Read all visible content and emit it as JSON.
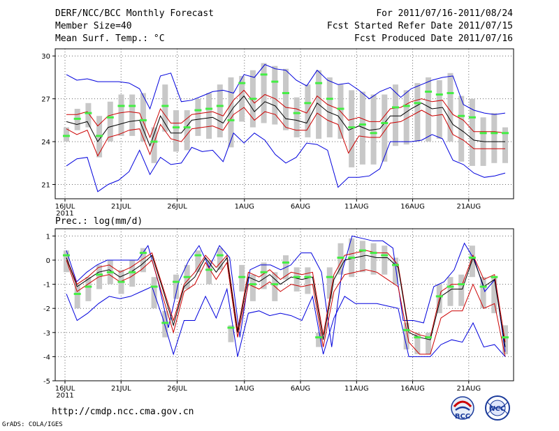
{
  "header": {
    "title": "DERF/NCC/BCC Monthly Forecast",
    "member_size": "Member Size=40",
    "variable": "Mean Surf. Temp.: °C",
    "period": "For 2011/07/16-2011/08/24",
    "started": "Fcst Started Refer Date 2011/07/15",
    "produced": "Fcst Produced Date 2011/07/16"
  },
  "footer": {
    "url": "http://cmdp.ncc.cma.gov.cn",
    "credit": "GrADS: COLA/IGES",
    "logo_bcc": "BCC",
    "logo_ncc": "NCC"
  },
  "colors": {
    "mean": "#000000",
    "inner": "#cc0000",
    "outer": "#0000dd",
    "box": "#c8c8c8",
    "marker": "#44ee44"
  },
  "chart_data": [
    {
      "type": "line",
      "title": "Mean Surf. Temp.: °C",
      "ylim": [
        20,
        30.5
      ],
      "yticks": [
        21,
        24,
        27,
        30
      ],
      "xticks": [
        {
          "day": 0,
          "label": "16JUL",
          "sub": "2011"
        },
        {
          "day": 5,
          "label": "21JUL"
        },
        {
          "day": 10,
          "label": "26JUL"
        },
        {
          "day": 16,
          "label": "1AUG"
        },
        {
          "day": 21,
          "label": "6AUG"
        },
        {
          "day": 26,
          "label": "11AUG"
        },
        {
          "day": 31,
          "label": "16AUG"
        },
        {
          "day": 36,
          "label": "21AUG"
        }
      ],
      "days": 40,
      "series": [
        {
          "name": "outer_high",
          "values": [
            28.7,
            28.3,
            28.4,
            28.2,
            28.2,
            28.2,
            28.1,
            27.7,
            26.3,
            28.6,
            28.8,
            26.8,
            26.9,
            27.2,
            27.5,
            27.6,
            27.4,
            28.7,
            28.5,
            29.4,
            29.1,
            29.0,
            28.3,
            27.9,
            29.0,
            28.3,
            28.0,
            28.1,
            27.6,
            27.0,
            27.5,
            27.8,
            27.1,
            27.7,
            28.0,
            28.3,
            28.5,
            28.6,
            26.6,
            26.2,
            26.0,
            25.9,
            26.0
          ]
        },
        {
          "name": "inner_high",
          "values": [
            25.9,
            25.9,
            26.1,
            25.1,
            25.8,
            26.0,
            26.1,
            26.0,
            24.3,
            26.3,
            25.3,
            25.3,
            25.9,
            26.0,
            26.1,
            25.8,
            26.9,
            27.6,
            26.7,
            27.3,
            27.0,
            26.4,
            26.3,
            26.0,
            27.2,
            26.6,
            26.3,
            25.5,
            25.7,
            25.4,
            25.4,
            26.3,
            26.4,
            26.8,
            27.0,
            26.8,
            26.9,
            25.9,
            25.5,
            24.7,
            24.7,
            24.7,
            24.6
          ]
        },
        {
          "name": "mean",
          "values": [
            25.4,
            25.2,
            25.4,
            24.0,
            25.0,
            25.2,
            25.4,
            25.5,
            23.7,
            25.8,
            24.6,
            24.6,
            25.5,
            25.6,
            25.7,
            25.3,
            26.4,
            27.2,
            26.1,
            26.8,
            26.5,
            25.6,
            25.5,
            25.3,
            26.7,
            26.1,
            25.8,
            24.8,
            25.1,
            24.8,
            24.9,
            25.8,
            25.8,
            26.3,
            26.7,
            26.3,
            26.4,
            25.2,
            24.7,
            24.1,
            24.0,
            24.0,
            24.0
          ]
        },
        {
          "name": "inner_low",
          "values": [
            24.9,
            24.5,
            24.8,
            23.0,
            24.3,
            24.5,
            24.8,
            24.9,
            23.1,
            25.2,
            24.2,
            24.0,
            24.9,
            25.0,
            25.1,
            24.8,
            25.9,
            26.4,
            25.5,
            26.1,
            25.9,
            25.0,
            24.8,
            24.8,
            26.0,
            25.5,
            25.2,
            23.2,
            24.4,
            24.3,
            24.3,
            25.3,
            25.4,
            25.8,
            26.2,
            25.8,
            25.9,
            24.5,
            24.1,
            23.5,
            23.5,
            23.5,
            23.5
          ]
        },
        {
          "name": "outer_low",
          "values": [
            22.3,
            22.8,
            22.9,
            20.5,
            21.0,
            21.3,
            21.9,
            23.4,
            21.7,
            22.9,
            22.4,
            22.5,
            23.6,
            23.3,
            23.4,
            22.6,
            24.6,
            23.9,
            24.6,
            24.1,
            23.1,
            22.5,
            22.9,
            23.9,
            23.8,
            23.4,
            20.8,
            21.5,
            21.5,
            21.6,
            22.1,
            24.0,
            24.0,
            24.0,
            24.1,
            24.5,
            24.2,
            22.7,
            22.4,
            21.8,
            21.5,
            21.6,
            21.8
          ]
        }
      ],
      "markers": [
        24.4,
        25.6,
        26.0,
        24.4,
        25.7,
        26.5,
        26.5,
        25.5,
        24.0,
        26.5,
        25.0,
        25.0,
        26.2,
        26.3,
        26.5,
        25.5,
        28.1,
        27.0,
        28.7,
        28.2,
        27.4,
        26.0,
        26.7,
        28.1,
        27.0,
        26.3,
        25.0,
        25.2,
        24.6,
        25.3,
        26.4,
        26.5,
        26.7,
        27.5,
        27.3,
        27.4,
        25.8,
        25.7,
        24.6,
        24.6,
        24.6
      ],
      "boxes": [
        [
          24.0,
          25.0
        ],
        [
          24.8,
          26.3
        ],
        [
          25.0,
          26.7
        ],
        [
          22.9,
          25.8
        ],
        [
          24.0,
          26.8
        ],
        [
          24.4,
          27.3
        ],
        [
          24.4,
          27.3
        ],
        [
          24.0,
          27.4
        ],
        [
          22.5,
          25.0
        ],
        [
          24.7,
          28.0
        ],
        [
          23.3,
          26.2
        ],
        [
          23.4,
          26.2
        ],
        [
          24.4,
          27.0
        ],
        [
          24.2,
          27.4
        ],
        [
          24.3,
          28.0
        ],
        [
          23.6,
          28.5
        ],
        [
          25.4,
          28.6
        ],
        [
          25.0,
          29.0
        ],
        [
          25.3,
          29.5
        ],
        [
          25.2,
          29.3
        ],
        [
          24.8,
          29.1
        ],
        [
          24.3,
          27.1
        ],
        [
          24.3,
          28.0
        ],
        [
          24.2,
          29.0
        ],
        [
          24.3,
          28.5
        ],
        [
          24.2,
          28.0
        ],
        [
          22.2,
          27.6
        ],
        [
          22.4,
          27.5
        ],
        [
          22.4,
          27.3
        ],
        [
          22.6,
          27.3
        ],
        [
          23.7,
          28.0
        ],
        [
          23.8,
          27.6
        ],
        [
          24.0,
          28.1
        ],
        [
          24.0,
          28.5
        ],
        [
          24.2,
          28.3
        ],
        [
          24.0,
          28.8
        ],
        [
          22.6,
          27.2
        ],
        [
          22.3,
          27.0
        ],
        [
          22.3,
          25.7
        ],
        [
          22.5,
          26.0
        ],
        [
          22.5,
          25.0
        ]
      ]
    },
    {
      "type": "line",
      "title": "Prec.: log(mm/d)",
      "ylim": [
        -5,
        1.3
      ],
      "yticks": [
        -5,
        -4,
        -3,
        -2,
        -1,
        0,
        1
      ],
      "xticks": [
        {
          "day": 0,
          "label": "16JUL",
          "sub": "2011"
        },
        {
          "day": 5,
          "label": "21JUL"
        },
        {
          "day": 10,
          "label": "26JUL"
        },
        {
          "day": 16,
          "label": "1AUG"
        },
        {
          "day": 21,
          "label": "6AUG"
        },
        {
          "day": 26,
          "label": "11AUG"
        },
        {
          "day": 31,
          "label": "16AUG"
        },
        {
          "day": 36,
          "label": "21AUG"
        }
      ],
      "days": 40,
      "series": [
        {
          "name": "outer_high",
          "values": [
            0.4,
            -0.9,
            -0.5,
            -0.2,
            0.0,
            0.0,
            0.0,
            0.0,
            0.6,
            -0.9,
            -2.8,
            -0.9,
            0.0,
            0.6,
            -0.3,
            0.6,
            0.1,
            -3.2,
            -0.4,
            -0.2,
            -0.2,
            -0.4,
            -0.2,
            0.3,
            0.3,
            -0.5,
            -3.6,
            -0.5,
            1.0,
            0.9,
            0.8,
            0.8,
            0.5,
            -2.5,
            -2.5,
            -2.6,
            -1.1,
            -0.9,
            -0.4,
            0.7,
            0.0,
            -1.3,
            -0.8,
            -3.8
          ]
        },
        {
          "name": "inner_high",
          "values": [
            0.1,
            -1.0,
            -0.7,
            -0.3,
            -0.2,
            -0.5,
            -0.3,
            0.0,
            0.3,
            -1.1,
            -2.5,
            -1.0,
            -0.5,
            0.2,
            -0.3,
            0.2,
            -2.9,
            -0.5,
            -0.7,
            -0.4,
            -0.8,
            -0.5,
            -0.6,
            -0.5,
            -3.1,
            -0.6,
            0.2,
            0.3,
            0.4,
            0.3,
            0.3,
            -0.2,
            -2.9,
            -3.1,
            -3.2,
            -1.3,
            -1.0,
            -1.0,
            0.2,
            -0.8,
            -0.6,
            -3.4
          ]
        },
        {
          "name": "mean",
          "values": [
            0.1,
            -1.1,
            -0.8,
            -0.5,
            -0.4,
            -0.7,
            -0.5,
            -0.2,
            0.2,
            -1.2,
            -2.7,
            -1.1,
            -0.7,
            0.1,
            -0.5,
            0.1,
            -3.0,
            -0.7,
            -0.9,
            -0.6,
            -1.0,
            -0.7,
            -0.8,
            -0.7,
            -3.3,
            -0.8,
            0.0,
            0.1,
            0.2,
            0.1,
            0.1,
            -0.3,
            -3.0,
            -3.2,
            -3.3,
            -1.5,
            -1.2,
            -1.2,
            0.1,
            -1.1,
            -0.8,
            -3.6
          ]
        },
        {
          "name": "inner_low",
          "values": [
            0.0,
            -1.3,
            -1.0,
            -0.7,
            -0.6,
            -0.9,
            -0.7,
            -0.4,
            0.0,
            -1.5,
            -3.0,
            -1.3,
            -1.0,
            -0.1,
            -0.8,
            -0.1,
            -3.2,
            -1.0,
            -1.2,
            -0.9,
            -1.3,
            -1.0,
            -1.1,
            -1.0,
            -3.6,
            -1.3,
            -0.6,
            -0.5,
            -0.4,
            -0.5,
            -0.8,
            -1.1,
            -3.4,
            -3.9,
            -3.9,
            -2.4,
            -2.1,
            -2.1,
            -1.0,
            -2.0,
            -1.8,
            -4.0
          ]
        },
        {
          "name": "outer_low",
          "values": [
            -1.4,
            -2.5,
            -2.2,
            -1.8,
            -1.5,
            -1.6,
            -1.5,
            -1.3,
            -1.1,
            -2.4,
            -3.9,
            -2.5,
            -2.5,
            -1.5,
            -2.4,
            -1.2,
            -4.0,
            -2.2,
            -2.1,
            -2.3,
            -2.2,
            -2.3,
            -2.5,
            -1.5,
            -3.9,
            -2.4,
            -1.5,
            -1.8,
            -1.8,
            -1.8,
            -1.9,
            -2.0,
            -4.0,
            -4.0,
            -4.0,
            -3.5,
            -3.3,
            -3.4,
            -2.6,
            -3.6,
            -3.5,
            -4.0
          ]
        }
      ],
      "markers": [
        0.2,
        -1.4,
        -1.1,
        -0.6,
        -0.5,
        -0.9,
        -0.5,
        0.3,
        -1.1,
        -2.6,
        -0.9,
        -0.7,
        0.2,
        -0.4,
        0.2,
        -2.8,
        -0.7,
        -1.0,
        -0.5,
        -1.0,
        -0.1,
        -0.7,
        -0.7,
        -3.2,
        -0.7,
        0.1,
        0.1,
        0.4,
        0.3,
        0.2,
        -0.2,
        -2.9,
        -3.2,
        -3.2,
        -1.5,
        -1.1,
        -1.0,
        0.1,
        -1.1,
        -0.7,
        -3.2
      ],
      "boxes": [
        [
          -0.5,
          0.4
        ],
        [
          -2.0,
          -1.0
        ],
        [
          -1.7,
          -0.7
        ],
        [
          -1.2,
          -0.2
        ],
        [
          -1.0,
          0.0
        ],
        [
          -1.4,
          -0.4
        ],
        [
          -1.1,
          0.0
        ],
        [
          -0.5,
          0.5
        ],
        [
          -2.0,
          -0.7
        ],
        [
          -3.2,
          -2.1
        ],
        [
          -1.6,
          -0.6
        ],
        [
          -1.2,
          -0.2
        ],
        [
          -0.5,
          0.4
        ],
        [
          -1.0,
          0.0
        ],
        [
          -0.4,
          0.5
        ],
        [
          -3.4,
          -2.7
        ],
        [
          -1.3,
          -0.2
        ],
        [
          -1.7,
          -0.6
        ],
        [
          -1.2,
          -0.1
        ],
        [
          -1.7,
          -0.5
        ],
        [
          -0.8,
          0.2
        ],
        [
          -1.3,
          -0.3
        ],
        [
          -1.4,
          -0.3
        ],
        [
          -3.6,
          -3.0
        ],
        [
          -1.6,
          -0.3
        ],
        [
          -0.6,
          0.7
        ],
        [
          -0.7,
          0.9
        ],
        [
          -0.5,
          0.8
        ],
        [
          -0.6,
          0.7
        ],
        [
          -0.6,
          0.6
        ],
        [
          -1.0,
          0.1
        ],
        [
          -3.7,
          -2.6
        ],
        [
          -3.9,
          -3.0
        ],
        [
          -3.9,
          -3.0
        ],
        [
          -2.2,
          -1.0
        ],
        [
          -1.9,
          -0.7
        ],
        [
          -1.9,
          -0.6
        ],
        [
          -0.7,
          0.6
        ],
        [
          -2.0,
          -0.7
        ],
        [
          -2.2,
          -0.7
        ],
        [
          -3.9,
          -2.7
        ]
      ]
    }
  ]
}
